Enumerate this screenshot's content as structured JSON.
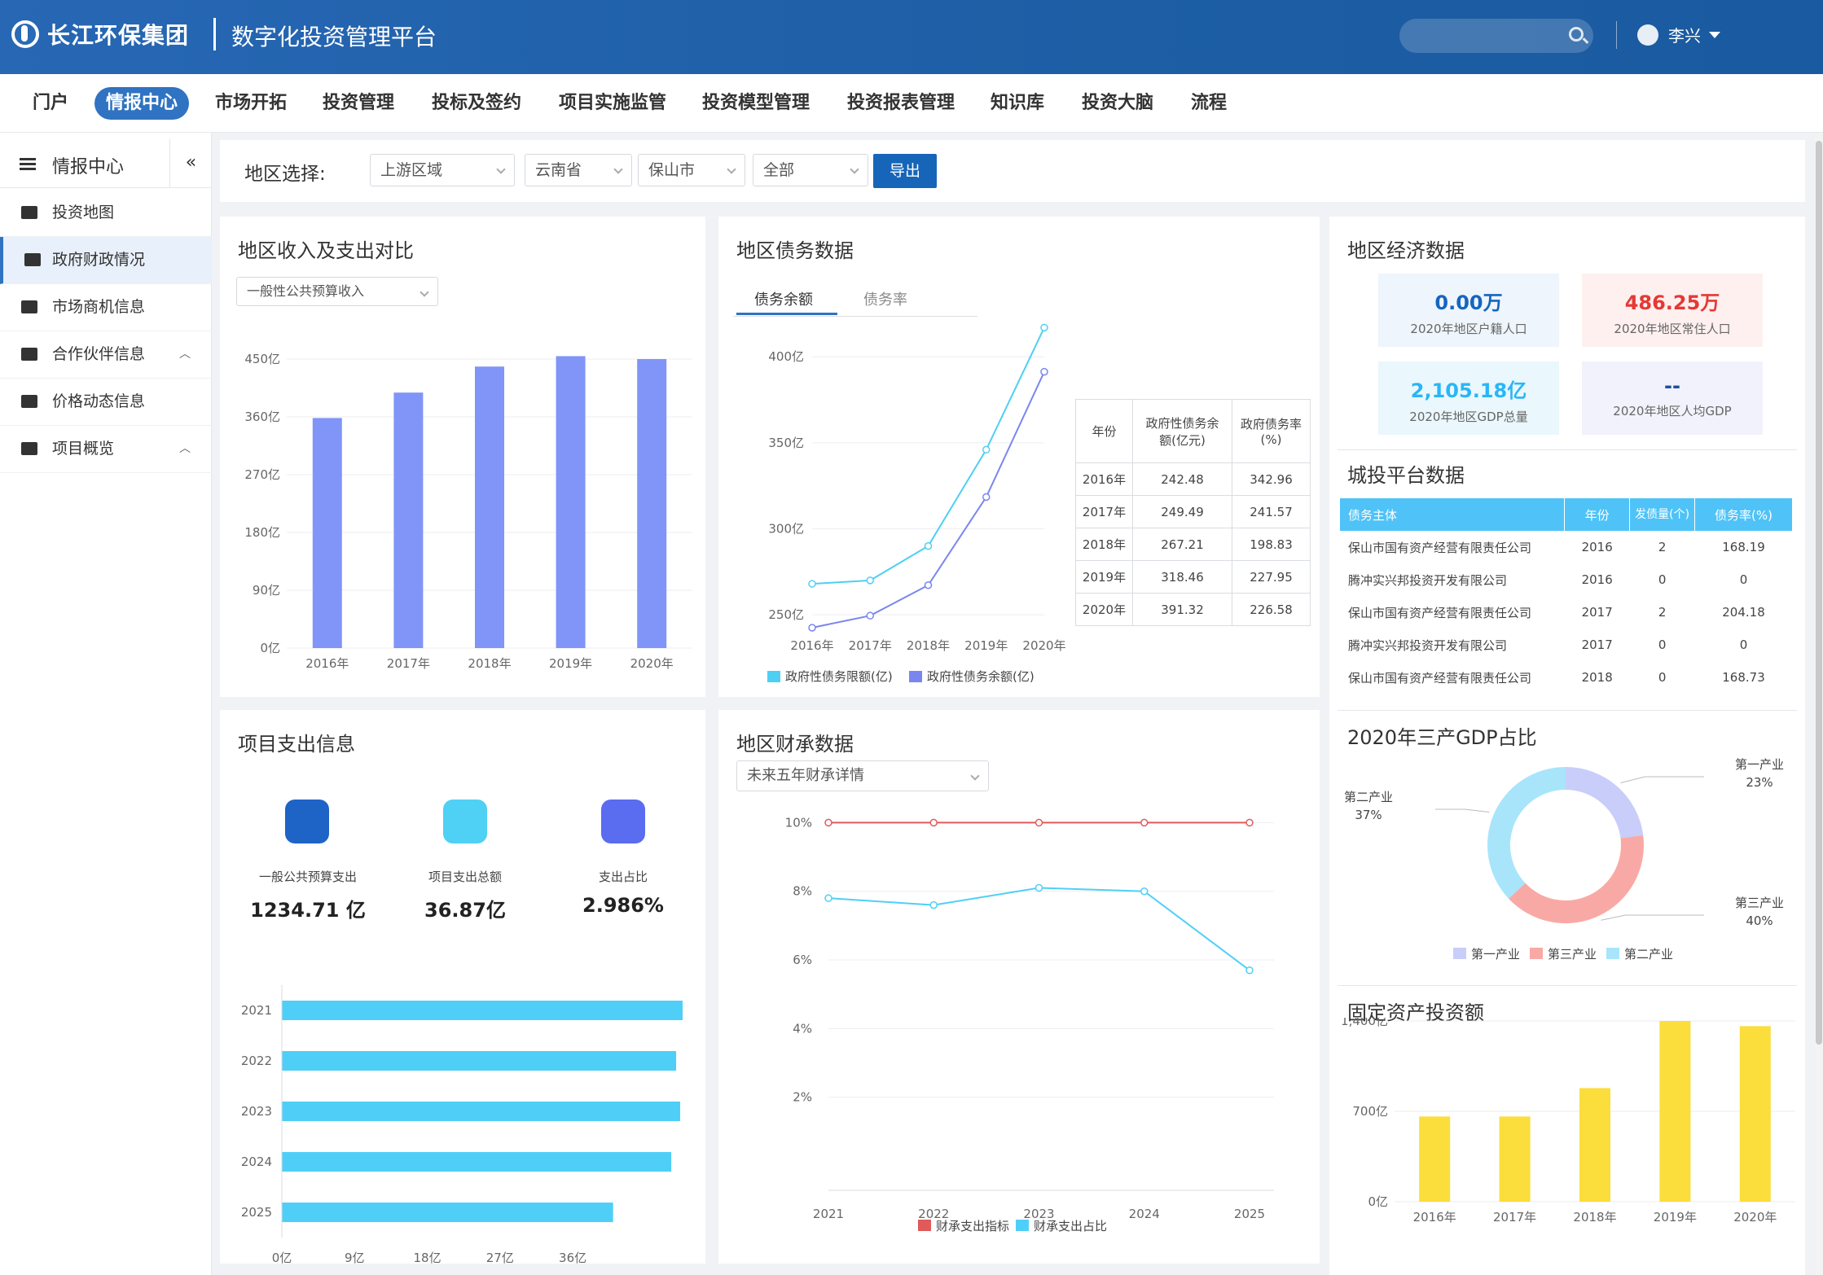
{
  "header": {
    "brand": "长江环保集团",
    "platform": "数字化投资管理平台",
    "user": "李兴"
  },
  "nav": [
    "门户",
    "情报中心",
    "市场开拓",
    "投资管理",
    "投标及签约",
    "项目实施监管",
    "投资模型管理",
    "投资报表管理",
    "知识库",
    "投资大脑",
    "流程"
  ],
  "nav_active": "情报中心",
  "sidebar": {
    "title": "情报中心",
    "items": [
      {
        "label": "投资地图",
        "icon": "map-icon"
      },
      {
        "label": "政府财政情况",
        "icon": "book-icon"
      },
      {
        "label": "市场商机信息",
        "icon": "database-icon"
      },
      {
        "label": "合作伙伴信息",
        "icon": "folder-icon"
      },
      {
        "label": "价格动态信息",
        "icon": "list-icon"
      },
      {
        "label": "项目概览",
        "icon": "folder-icon"
      }
    ],
    "selected": "政府财政情况"
  },
  "filter": {
    "label": "地区选择:",
    "region": "上游区域",
    "province": "云南省",
    "city": "保山市",
    "district": "全部",
    "export": "导出"
  },
  "income_panel": {
    "title": "地区收入及支出对比",
    "select": "一般性公共预算收入"
  },
  "debt_panel": {
    "title": "地区债务数据",
    "tabs": [
      "债务余额",
      "债务率"
    ],
    "table_header": [
      "年份",
      "政府性债务余额(亿元)",
      "政府债务率(%)"
    ],
    "table_rows": [
      [
        "2016年",
        "242.48",
        "342.96"
      ],
      [
        "2017年",
        "249.49",
        "241.57"
      ],
      [
        "2018年",
        "267.21",
        "198.83"
      ],
      [
        "2019年",
        "318.46",
        "227.95"
      ],
      [
        "2020年",
        "391.32",
        "226.58"
      ]
    ]
  },
  "econ_panel": {
    "title": "地区经济数据",
    "cards": [
      {
        "value": "0.00万",
        "label": "2020年地区户籍人口",
        "color": "#1565c0",
        "bg": "#eef5fc"
      },
      {
        "value": "486.25万",
        "label": "2020年地区常住人口",
        "color": "#e53935",
        "bg": "#fdf0ef"
      },
      {
        "value": "2,105.18亿",
        "label": "2020年地区GDP总量",
        "color": "#29b6f6",
        "bg": "#eaf7fd"
      },
      {
        "value": "--",
        "label": "2020年地区人均GDP",
        "color": "#1a4fa0",
        "bg": "#f1f2fb"
      }
    ]
  },
  "city_panel": {
    "title": "城投平台数据",
    "header": [
      "债务主体",
      "年份",
      "发债量(个)",
      "债务率(%)"
    ],
    "rows": [
      [
        "保山市国有资产经营有限责任公司",
        "2016",
        "2",
        "168.19"
      ],
      [
        "腾冲实兴邦投资开发有限公司",
        "2016",
        "0",
        "0"
      ],
      [
        "保山市国有资产经营有限责任公司",
        "2017",
        "2",
        "204.18"
      ],
      [
        "腾冲实兴邦投资开发有限公司",
        "2017",
        "0",
        "0"
      ],
      [
        "保山市国有资产经营有限责任公司",
        "2018",
        "0",
        "168.73"
      ]
    ]
  },
  "gdp_panel": {
    "title": "2020年三产GDP占比"
  },
  "fixed_panel": {
    "title": "固定资产投资额"
  },
  "spend_panel": {
    "title": "项目支出信息",
    "stats": [
      {
        "label": "一般公共预算支出",
        "value": "1234.71 亿"
      },
      {
        "label": "项目支出总额",
        "value": "36.87亿"
      },
      {
        "label": "支出占比",
        "value": "2.986%"
      }
    ]
  },
  "fiscal_panel": {
    "title": "地区财承数据",
    "select": "未来五年财承详情"
  },
  "chart_data": [
    {
      "type": "bar",
      "name": "income",
      "categories": [
        "2016年",
        "2017年",
        "2018年",
        "2019年",
        "2020年"
      ],
      "values": [
        398,
        442,
        487,
        505,
        500
      ],
      "yticks": [
        "0亿",
        "90亿",
        "180亿",
        "270亿",
        "360亿",
        "450亿"
      ],
      "ylim": [
        0,
        500
      ],
      "color": "#8095f7"
    },
    {
      "type": "line",
      "name": "debt",
      "categories": [
        "2016年",
        "2017年",
        "2018年",
        "2019年",
        "2020年"
      ],
      "yticks": [
        "250亿",
        "300亿",
        "350亿",
        "400亿"
      ],
      "ylim": [
        242,
        420
      ],
      "series": [
        {
          "name": "政府性债务限额(亿)",
          "values": [
            268,
            270,
            290,
            346,
            417
          ],
          "color": "#4dd0f3"
        },
        {
          "name": "政府性债务余额(亿)",
          "values": [
            242.48,
            249.49,
            267.21,
            318.46,
            391.32
          ],
          "color": "#7a86ef"
        }
      ]
    },
    {
      "type": "pie",
      "name": "gdp",
      "slices": [
        {
          "name": "第一产业",
          "value": 23,
          "label": "23%",
          "color": "#c8cdfa"
        },
        {
          "name": "第三产业",
          "value": 40,
          "label": "40%",
          "color": "#f9a9a5"
        },
        {
          "name": "第二产业",
          "value": 37,
          "label": "37%",
          "color": "#a8e5fb"
        }
      ]
    },
    {
      "type": "bar",
      "name": "fixed",
      "categories": [
        "2016年",
        "2017年",
        "2018年",
        "2019年",
        "2020年"
      ],
      "values": [
        660,
        660,
        880,
        1400,
        1360
      ],
      "yticks": [
        "0亿",
        "700亿",
        "1,400亿"
      ],
      "ylim": [
        0,
        1400
      ],
      "color": "#fbdd3c"
    },
    {
      "type": "bar",
      "name": "spend",
      "orientation": "horizontal",
      "categories": [
        "2021",
        "2022",
        "2023",
        "2024",
        "2025"
      ],
      "values": [
        49.6,
        48.8,
        49.3,
        48.2,
        41.0
      ],
      "xticks": [
        "0亿",
        "9亿",
        "18亿",
        "27亿",
        "36亿"
      ],
      "xlim": [
        0,
        49.6
      ],
      "color": "#4fcff7"
    },
    {
      "type": "line",
      "name": "fiscal",
      "categories": [
        "2021",
        "2022",
        "2023",
        "2024",
        "2025"
      ],
      "yticks": [
        "2%",
        "4%",
        "6%",
        "8%",
        "10%"
      ],
      "ylim": [
        0,
        10.2
      ],
      "series": [
        {
          "name": "财承支出指标",
          "values": [
            10,
            10,
            10,
            10,
            10
          ],
          "color": "#e05a5a"
        },
        {
          "name": "财承支出占比",
          "values": [
            7.8,
            7.6,
            8.1,
            8.0,
            5.7
          ],
          "color": "#4fcff7"
        }
      ]
    }
  ]
}
